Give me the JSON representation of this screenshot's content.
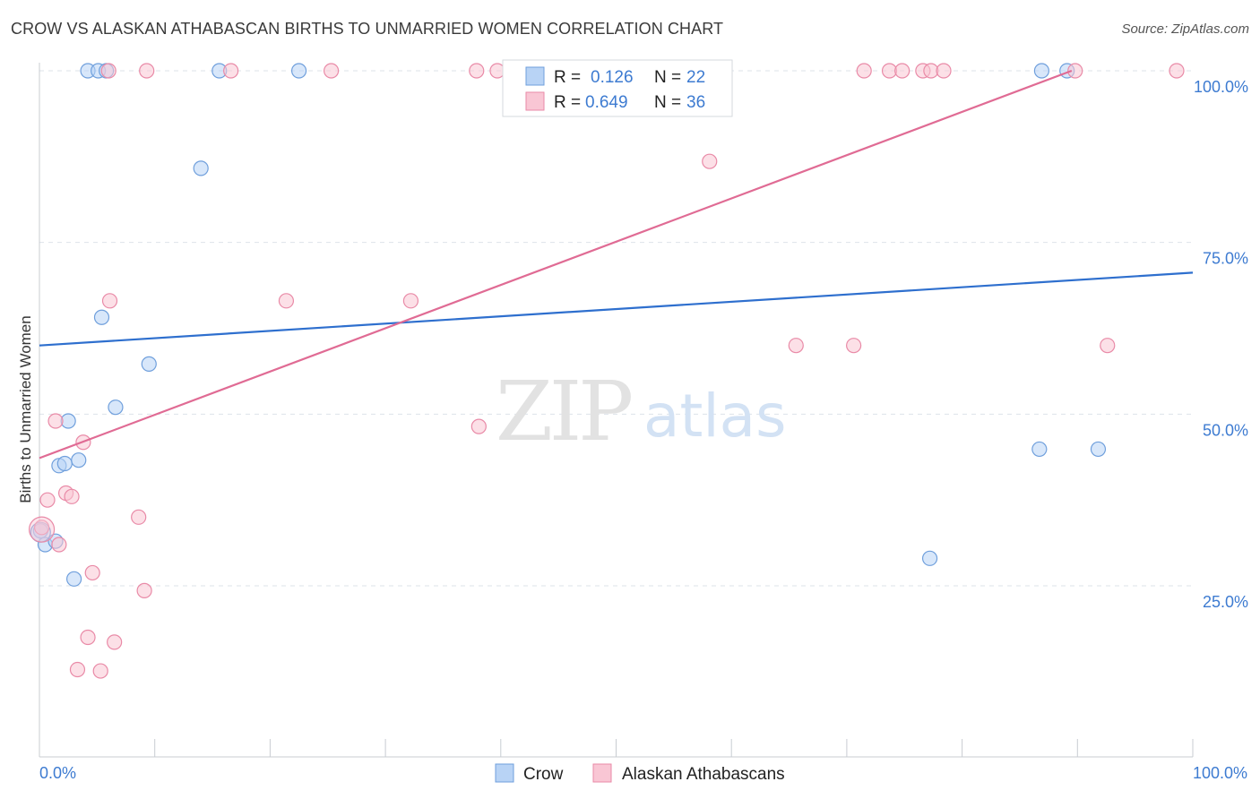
{
  "header": {
    "title": "CROW VS ALASKAN ATHABASCAN BIRTHS TO UNMARRIED WOMEN CORRELATION CHART",
    "source": "Source: ZipAtlas.com"
  },
  "watermark": {
    "zip": "ZIP",
    "atlas": "atlas"
  },
  "colors": {
    "crow_fill": "#b8d3f5",
    "crow_stroke": "#6f9fdc",
    "crow_line": "#2e6fce",
    "alaskan_fill": "#f9c6d4",
    "alaskan_stroke": "#e98aa7",
    "alaskan_line": "#e06b94",
    "tick_text": "#3d7bd1",
    "grid": "#dde3ea"
  },
  "legend": {
    "rows": [
      {
        "r_label": "R =",
        "r_value": "0.126",
        "n_label": "N =",
        "n_value": "22"
      },
      {
        "r_label": "R =",
        "r_value": "0.649",
        "n_label": "N =",
        "n_value": "36"
      }
    ]
  },
  "chart_data": {
    "type": "scatter",
    "title": "CROW VS ALASKAN ATHABASCAN BIRTHS TO UNMARRIED WOMEN CORRELATION CHART",
    "xlabel": "",
    "ylabel": "Births to Unmarried Women",
    "xlim": [
      0,
      100
    ],
    "ylim": [
      0,
      104
    ],
    "x_tick_labels": [
      "0.0%",
      "100.0%"
    ],
    "y_ticks": [
      25,
      50,
      75,
      100
    ],
    "y_tick_labels": [
      "25.0%",
      "50.0%",
      "75.0%",
      "100.0%"
    ],
    "grid": true,
    "legend_position": "top-center",
    "series": [
      {
        "name": "Crow",
        "R": 0.126,
        "N": 22,
        "trend": {
          "x": [
            0,
            100
          ],
          "y": [
            60.0,
            70.6
          ]
        },
        "points": [
          [
            0.1,
            33.0
          ],
          [
            0.5,
            31.0
          ],
          [
            1.4,
            31.5
          ],
          [
            1.7,
            42.5
          ],
          [
            2.2,
            42.8
          ],
          [
            2.5,
            49.0
          ],
          [
            3.0,
            26.0
          ],
          [
            3.4,
            43.3
          ],
          [
            4.2,
            100
          ],
          [
            5.1,
            100
          ],
          [
            5.4,
            64.1
          ],
          [
            5.8,
            100
          ],
          [
            6.6,
            51.0
          ],
          [
            9.5,
            57.3
          ],
          [
            14.0,
            85.8
          ],
          [
            15.6,
            100
          ],
          [
            22.5,
            100
          ],
          [
            77.2,
            29.0
          ],
          [
            86.7,
            44.9
          ],
          [
            86.9,
            100
          ],
          [
            89.1,
            100
          ],
          [
            91.8,
            44.9
          ]
        ]
      },
      {
        "name": "Alaskan Athabascans",
        "R": 0.649,
        "N": 36,
        "trend": {
          "x": [
            0,
            89.5
          ],
          "y": [
            43.6,
            100
          ]
        },
        "points": [
          [
            0.2,
            33.5
          ],
          [
            0.7,
            37.5
          ],
          [
            1.4,
            49.0
          ],
          [
            1.7,
            31.0
          ],
          [
            2.3,
            38.5
          ],
          [
            2.8,
            38.0
          ],
          [
            3.3,
            12.8
          ],
          [
            3.8,
            45.9
          ],
          [
            4.2,
            17.5
          ],
          [
            4.6,
            26.9
          ],
          [
            5.3,
            12.6
          ],
          [
            6.0,
            100
          ],
          [
            6.1,
            66.5
          ],
          [
            6.5,
            16.8
          ],
          [
            8.6,
            35.0
          ],
          [
            9.1,
            24.3
          ],
          [
            9.3,
            100
          ],
          [
            16.6,
            100
          ],
          [
            21.4,
            66.5
          ],
          [
            25.3,
            100
          ],
          [
            32.2,
            66.5
          ],
          [
            37.9,
            100
          ],
          [
            38.1,
            48.2
          ],
          [
            39.7,
            100
          ],
          [
            58.1,
            86.8
          ],
          [
            65.6,
            60.0
          ],
          [
            70.6,
            60.0
          ],
          [
            71.5,
            100
          ],
          [
            73.7,
            100
          ],
          [
            74.8,
            100
          ],
          [
            76.6,
            100
          ],
          [
            77.3,
            100
          ],
          [
            78.4,
            100
          ],
          [
            89.8,
            100
          ],
          [
            92.6,
            60.0
          ],
          [
            98.6,
            100
          ]
        ]
      }
    ]
  },
  "bottom_legend": [
    {
      "label": "Crow"
    },
    {
      "label": "Alaskan Athabascans"
    }
  ]
}
